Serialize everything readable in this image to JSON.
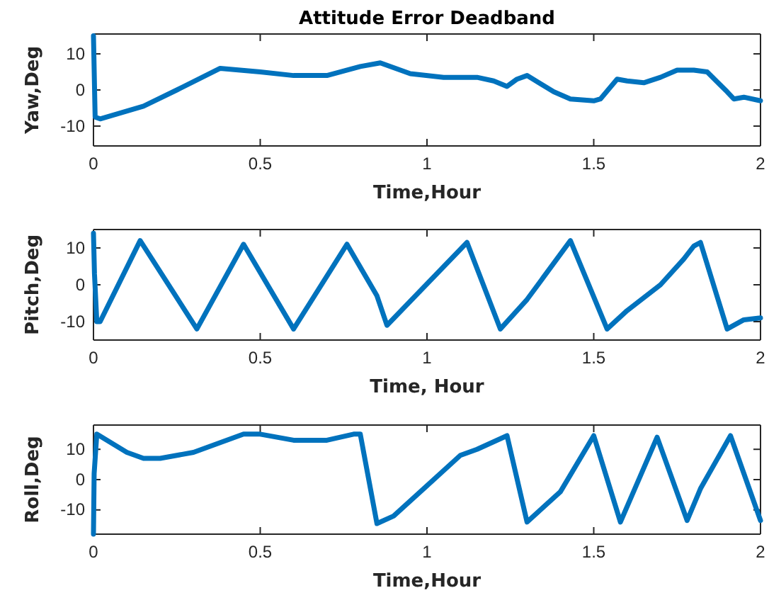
{
  "chart_data": [
    {
      "type": "line",
      "title": "Attitude Error Deadband",
      "xlabel": "Time,Hour",
      "ylabel": "Yaw,Deg",
      "xlim": [
        0,
        2
      ],
      "xticks": [
        0,
        0.5,
        1,
        1.5,
        2
      ],
      "ylim": [
        -15.5,
        15.5
      ],
      "yticks": [
        -10,
        0,
        10
      ],
      "series": [
        {
          "color": "#0072bd",
          "x": [
            0,
            0.005,
            0.02,
            0.15,
            0.25,
            0.38,
            0.5,
            0.6,
            0.7,
            0.8,
            0.86,
            0.95,
            1.05,
            1.15,
            1.2,
            1.24,
            1.27,
            1.3,
            1.38,
            1.43,
            1.5,
            1.52,
            1.57,
            1.6,
            1.65,
            1.7,
            1.75,
            1.8,
            1.84,
            1.9,
            1.92,
            1.95,
            2
          ],
          "values": [
            15,
            -7.5,
            -8,
            -4.5,
            0,
            6,
            5,
            4,
            4,
            6.5,
            7.5,
            4.5,
            3.5,
            3.5,
            2.5,
            1,
            3,
            4,
            -0.5,
            -2.5,
            -3,
            -2.5,
            3,
            2.5,
            2,
            3.5,
            5.5,
            5.5,
            5,
            -0.5,
            -2.5,
            -2,
            -3
          ]
        }
      ]
    },
    {
      "type": "line",
      "xlabel": "Time, Hour",
      "ylabel": "Pitch,Deg",
      "xlim": [
        0,
        2
      ],
      "xticks": [
        0,
        0.5,
        1,
        1.5,
        2
      ],
      "ylim": [
        -15,
        15
      ],
      "yticks": [
        -10,
        0,
        10
      ],
      "series": [
        {
          "color": "#0072bd",
          "x": [
            0,
            0.003,
            0.01,
            0.02,
            0.14,
            0.31,
            0.45,
            0.6,
            0.76,
            0.85,
            0.88,
            1.12,
            1.22,
            1.3,
            1.43,
            1.54,
            1.6,
            1.7,
            1.77,
            1.8,
            1.82,
            1.9,
            1.95,
            2
          ],
          "values": [
            14,
            3,
            -10,
            -10,
            12,
            -12,
            11,
            -12,
            11,
            -3,
            -11,
            11.5,
            -12,
            -4,
            12,
            -12,
            -7,
            0,
            7,
            10.5,
            11.5,
            -12,
            -9.5,
            -9
          ]
        }
      ]
    },
    {
      "type": "line",
      "xlabel": "Time,Hour",
      "ylabel": "Roll,Deg",
      "xlim": [
        0,
        2
      ],
      "xticks": [
        0,
        0.5,
        1,
        1.5,
        2
      ],
      "ylim": [
        -18,
        18
      ],
      "yticks": [
        -10,
        0,
        10
      ],
      "series": [
        {
          "color": "#0072bd",
          "x": [
            0,
            0.002,
            0.01,
            0.1,
            0.15,
            0.2,
            0.3,
            0.45,
            0.5,
            0.6,
            0.7,
            0.78,
            0.8,
            0.85,
            0.9,
            1,
            1.1,
            1.15,
            1.24,
            1.3,
            1.4,
            1.5,
            1.58,
            1.69,
            1.78,
            1.82,
            1.91,
            2
          ],
          "values": [
            -18,
            2,
            15,
            9,
            7,
            7,
            9,
            15,
            15,
            13,
            13,
            15,
            15,
            -14.5,
            -12,
            -2,
            8,
            10,
            14.5,
            -14,
            -4,
            14.5,
            -14,
            14,
            -13.5,
            -3,
            14.5,
            -13.5
          ]
        }
      ]
    }
  ]
}
